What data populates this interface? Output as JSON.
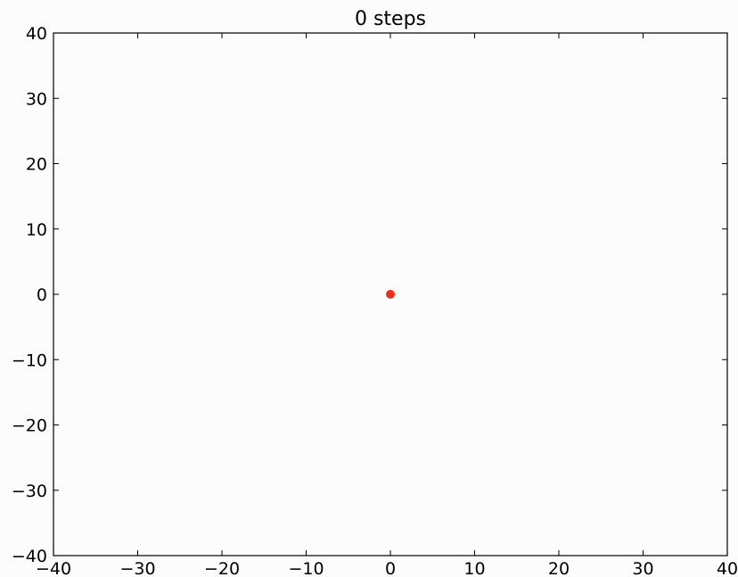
{
  "chart_data": {
    "type": "scatter",
    "title": "0 steps",
    "xlabel": "",
    "ylabel": "",
    "xlim": [
      -40,
      40
    ],
    "ylim": [
      -40,
      40
    ],
    "xticks": [
      -40,
      -30,
      -20,
      -10,
      0,
      10,
      20,
      30,
      40
    ],
    "yticks": [
      -40,
      -30,
      -20,
      -10,
      0,
      10,
      20,
      30,
      40
    ],
    "grid": false,
    "series": [
      {
        "points": [
          {
            "x": 0,
            "y": 0
          }
        ],
        "color": "#e8321e"
      }
    ],
    "colors": {
      "background": "#fcfcfc",
      "axes": "#000000"
    }
  }
}
